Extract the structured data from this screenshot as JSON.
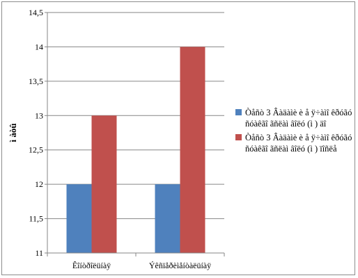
{
  "chart_data": {
    "type": "bar",
    "title": "",
    "xlabel": "",
    "ylabel": "ì àòû",
    "ylim": [
      11,
      14.5
    ],
    "yticks": [
      "11",
      "11,5",
      "12",
      "12,5",
      "13",
      "13,5",
      "14",
      "14,5"
    ],
    "categories": [
      "Êîíòðîëüíàÿ",
      "Ýêñïåðèìåíòàëüíàÿ"
    ],
    "series": [
      {
        "name": "Òåñò 3 Âàäàìè è å ÿ÷àìî êðóãó ñóàêãî  ãñëàì âîëó (ì ) äî",
        "color": "#4f81bd",
        "values": [
          12,
          12
        ]
      },
      {
        "name": "Òåñò 3 Âàäàìè è å ÿ÷àìî êðóãó ñóàêãî  ãñëàì âîëó (ì ) ïîñëå",
        "color": "#c0504d",
        "values": [
          13,
          14
        ]
      }
    ],
    "grid": true,
    "legend": "right"
  }
}
